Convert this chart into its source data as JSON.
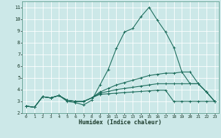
{
  "title": "",
  "xlabel": "Humidex (Indice chaleur)",
  "xlim": [
    -0.5,
    23.5
  ],
  "ylim": [
    2,
    11.5
  ],
  "yticks": [
    2,
    3,
    4,
    5,
    6,
    7,
    8,
    9,
    10,
    11
  ],
  "xticks": [
    0,
    1,
    2,
    3,
    4,
    5,
    6,
    7,
    8,
    9,
    10,
    11,
    12,
    13,
    14,
    15,
    16,
    17,
    18,
    19,
    20,
    21,
    22,
    23
  ],
  "bg_color": "#cce8e8",
  "line_color": "#1a6b5a",
  "grid_color": "#ffffff",
  "lines": [
    {
      "x": [
        0,
        1,
        2,
        3,
        4,
        5,
        6,
        7,
        8,
        9,
        10,
        11,
        12,
        13,
        14,
        15,
        16,
        17,
        18,
        19,
        20,
        21,
        22,
        23
      ],
      "y": [
        2.6,
        2.5,
        3.4,
        3.3,
        3.5,
        3.0,
        2.9,
        2.7,
        3.1,
        4.4,
        5.7,
        7.5,
        8.9,
        9.2,
        10.2,
        11.0,
        9.9,
        8.9,
        7.6,
        5.5,
        4.5,
        4.5,
        3.8,
        3.0
      ]
    },
    {
      "x": [
        0,
        1,
        2,
        3,
        4,
        5,
        6,
        7,
        8,
        9,
        10,
        11,
        12,
        13,
        14,
        15,
        16,
        17,
        18,
        19,
        20,
        21,
        22,
        23
      ],
      "y": [
        2.6,
        2.5,
        3.4,
        3.3,
        3.5,
        3.1,
        3.0,
        3.0,
        3.3,
        3.8,
        4.1,
        4.4,
        4.6,
        4.8,
        5.0,
        5.2,
        5.3,
        5.4,
        5.4,
        5.5,
        5.5,
        4.5,
        3.8,
        3.0
      ]
    },
    {
      "x": [
        0,
        1,
        2,
        3,
        4,
        5,
        6,
        7,
        8,
        9,
        10,
        11,
        12,
        13,
        14,
        15,
        16,
        17,
        18,
        19,
        20,
        21,
        22,
        23
      ],
      "y": [
        2.6,
        2.5,
        3.4,
        3.3,
        3.5,
        3.1,
        3.0,
        3.0,
        3.3,
        3.7,
        3.85,
        4.0,
        4.1,
        4.2,
        4.3,
        4.4,
        4.5,
        4.5,
        4.5,
        4.5,
        4.5,
        4.5,
        3.8,
        3.0
      ]
    },
    {
      "x": [
        0,
        1,
        2,
        3,
        4,
        5,
        6,
        7,
        8,
        9,
        10,
        11,
        12,
        13,
        14,
        15,
        16,
        17,
        18,
        19,
        20,
        21,
        22,
        23
      ],
      "y": [
        2.6,
        2.5,
        3.4,
        3.3,
        3.5,
        3.1,
        3.0,
        3.0,
        3.3,
        3.6,
        3.65,
        3.7,
        3.75,
        3.8,
        3.85,
        3.9,
        3.95,
        3.95,
        3.0,
        3.0,
        3.0,
        3.0,
        3.0,
        3.0
      ]
    }
  ]
}
